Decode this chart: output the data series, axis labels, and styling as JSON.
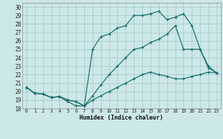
{
  "xlabel": "Humidex (Indice chaleur)",
  "bg_color": "#cde8e8",
  "grid_color": "#aacfcf",
  "line_color": "#1a6e6e",
  "xlim": [
    -0.5,
    23.5
  ],
  "ylim": [
    18,
    30.5
  ],
  "yticks": [
    18,
    19,
    20,
    21,
    22,
    23,
    24,
    25,
    26,
    27,
    28,
    29,
    30
  ],
  "xticks": [
    0,
    1,
    2,
    3,
    4,
    5,
    6,
    7,
    8,
    9,
    10,
    11,
    12,
    13,
    14,
    15,
    16,
    17,
    18,
    19,
    20,
    21,
    22,
    23
  ],
  "series": [
    [
      20.5,
      19.8,
      19.7,
      19.3,
      19.4,
      19.0,
      18.8,
      18.3,
      19.0,
      19.5,
      20.0,
      20.5,
      21.0,
      21.5,
      22.0,
      22.3,
      22.0,
      21.8,
      21.5,
      21.5,
      21.8,
      22.0,
      22.3,
      22.2
    ],
    [
      20.5,
      19.8,
      19.7,
      19.3,
      19.4,
      18.8,
      18.3,
      18.3,
      25.0,
      26.5,
      26.8,
      27.5,
      27.8,
      29.0,
      29.0,
      29.2,
      29.5,
      28.5,
      28.8,
      29.2,
      27.8,
      25.0,
      23.0,
      22.2
    ],
    [
      20.5,
      19.8,
      19.7,
      19.3,
      19.4,
      19.0,
      18.8,
      18.3,
      19.5,
      20.8,
      22.0,
      23.0,
      24.0,
      25.0,
      25.2,
      25.8,
      26.2,
      26.8,
      27.8,
      25.0,
      25.0,
      25.0,
      22.8,
      22.2
    ]
  ]
}
